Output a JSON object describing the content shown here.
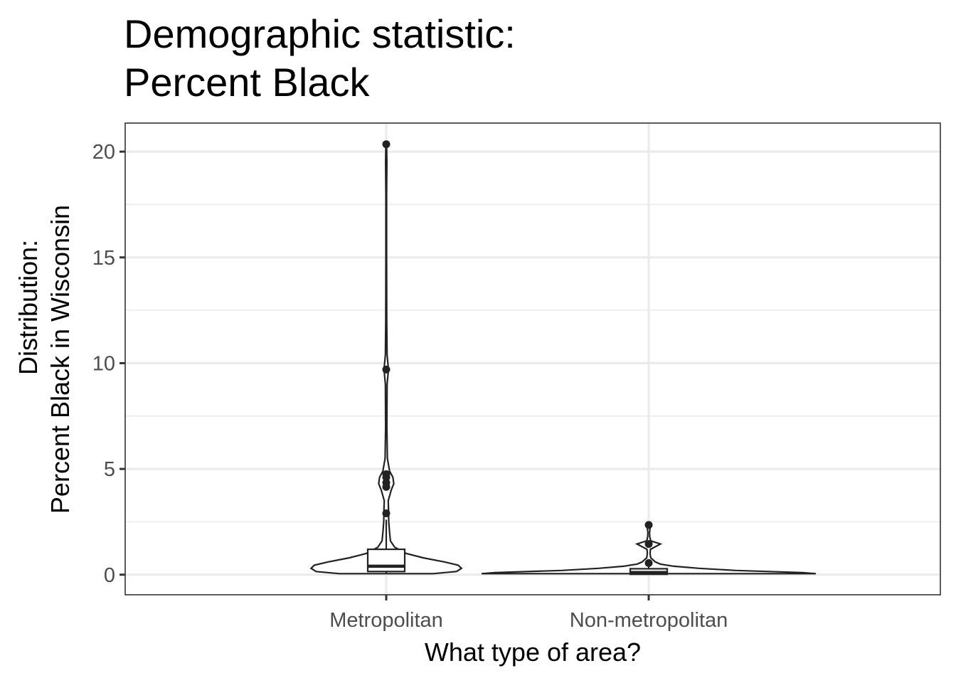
{
  "chart_data": {
    "type": "violin",
    "title_lines": [
      "Demographic statistic:",
      "Percent Black"
    ],
    "xlabel": "What type of area?",
    "ylabel_lines": [
      "Distribution:",
      "Percent Black in Wisconsin"
    ],
    "ylim": [
      -0.95,
      21.35
    ],
    "yticks": [
      0,
      5,
      10,
      15,
      20
    ],
    "ytick_labels": [
      "0",
      "5",
      "10",
      "15",
      "20"
    ],
    "grid": true,
    "categories": [
      "Metropolitan",
      "Non-metropolitan"
    ],
    "groups": [
      {
        "name": "Metropolitan",
        "box": {
          "q1": 0.15,
          "median": 0.4,
          "q3": 1.2,
          "whisker_low": 0.05,
          "whisker_high": 2.6
        },
        "outliers": [
          2.9,
          4.15,
          4.35,
          4.6,
          4.75,
          9.7,
          20.35
        ],
        "density": [
          [
            0.05,
            0.28
          ],
          [
            0.15,
            0.42
          ],
          [
            0.3,
            0.45
          ],
          [
            0.45,
            0.43
          ],
          [
            0.6,
            0.35
          ],
          [
            0.8,
            0.22
          ],
          [
            1.0,
            0.12
          ],
          [
            1.3,
            0.05
          ],
          [
            1.6,
            0.025
          ],
          [
            2.0,
            0.02
          ],
          [
            2.5,
            0.015
          ],
          [
            3.0,
            0.014
          ],
          [
            3.5,
            0.012
          ],
          [
            4.0,
            0.03
          ],
          [
            4.3,
            0.045
          ],
          [
            4.6,
            0.04
          ],
          [
            4.9,
            0.02
          ],
          [
            5.5,
            0.007
          ],
          [
            7.0,
            0.004
          ],
          [
            9.0,
            0.005
          ],
          [
            9.7,
            0.013
          ],
          [
            10.4,
            0.005
          ],
          [
            12.0,
            0.003
          ],
          [
            15.0,
            0.002
          ],
          [
            18.0,
            0.002
          ],
          [
            19.5,
            0.004
          ],
          [
            20.35,
            0.002
          ]
        ]
      },
      {
        "name": "Non-metropolitan",
        "box": {
          "q1": 0.02,
          "median": 0.1,
          "q3": 0.28,
          "whisker_low": 0.0,
          "whisker_high": 0.5
        },
        "outliers": [
          0.55,
          1.45,
          2.35
        ],
        "density": [
          [
            0.05,
            1.0
          ],
          [
            0.1,
            0.92
          ],
          [
            0.2,
            0.52
          ],
          [
            0.3,
            0.3
          ],
          [
            0.4,
            0.15
          ],
          [
            0.5,
            0.07
          ],
          [
            0.6,
            0.04
          ],
          [
            0.8,
            0.012
          ],
          [
            1.0,
            0.008
          ],
          [
            1.2,
            0.01
          ],
          [
            1.45,
            0.07
          ],
          [
            1.6,
            0.012
          ],
          [
            1.8,
            0.006
          ],
          [
            2.0,
            0.005
          ],
          [
            2.2,
            0.008
          ],
          [
            2.35,
            0.018
          ],
          [
            2.42,
            0.004
          ]
        ]
      }
    ]
  }
}
